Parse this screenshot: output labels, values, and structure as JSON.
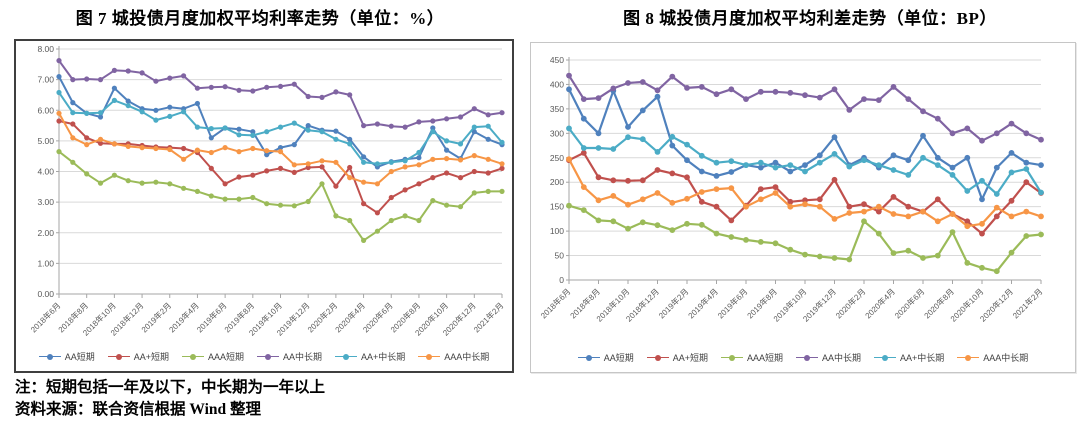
{
  "figures": [
    {
      "id": "figure-7",
      "title": "图 7  城投债月度加权平均利率走势（单位：%）"
    },
    {
      "id": "figure-8",
      "title": "图 8  城投债月度加权平均利差走势（单位：BP）"
    }
  ],
  "notes": {
    "line1": "注：短期包括一年及以下，中长期为一年以上",
    "line2": "资料来源：联合资信根据 Wind 整理"
  },
  "chart_data": [
    {
      "type": "line",
      "title": "城投债月度加权平均利率走势",
      "unit": "%",
      "x": [
        "2018年6月",
        "2018年7月",
        "2018年8月",
        "2018年9月",
        "2018年10月",
        "2018年11月",
        "2018年12月",
        "2019年1月",
        "2019年2月",
        "2019年3月",
        "2019年4月",
        "2019年5月",
        "2019年6月",
        "2019年7月",
        "2019年8月",
        "2019年9月",
        "2019年10月",
        "2019年11月",
        "2019年12月",
        "2020年1月",
        "2020年2月",
        "2020年3月",
        "2020年4月",
        "2020年5月",
        "2020年6月",
        "2020年7月",
        "2020年8月",
        "2020年9月",
        "2020年10月",
        "2020年11月",
        "2020年12月",
        "2021年1月",
        "2021年2月"
      ],
      "xtick_every": 2,
      "ylim": [
        0,
        8
      ],
      "yticks": [
        "0.00",
        "1.00",
        "2.00",
        "3.00",
        "4.00",
        "5.00",
        "6.00",
        "7.00",
        "8.00"
      ],
      "grid": true,
      "legend_position": "bottom",
      "series": [
        {
          "name": "AA短期",
          "color": "#4F81BD",
          "values": [
            7.1,
            6.25,
            5.9,
            5.78,
            6.72,
            6.3,
            6.05,
            6.0,
            6.1,
            6.05,
            6.22,
            5.1,
            5.42,
            5.38,
            5.3,
            4.55,
            4.78,
            4.88,
            5.5,
            5.35,
            5.32,
            5.05,
            4.48,
            4.15,
            4.32,
            4.4,
            4.45,
            5.42,
            4.7,
            4.42,
            5.3,
            5.05,
            4.88
          ]
        },
        {
          "name": "AA+短期",
          "color": "#C0504D",
          "values": [
            5.65,
            5.55,
            5.1,
            4.92,
            4.9,
            4.9,
            4.85,
            4.8,
            4.78,
            4.75,
            4.62,
            4.1,
            3.6,
            3.82,
            3.88,
            4.02,
            4.1,
            3.97,
            4.13,
            4.15,
            3.52,
            4.13,
            2.95,
            2.65,
            3.15,
            3.4,
            3.6,
            3.8,
            3.95,
            3.8,
            4.0,
            3.95,
            4.1
          ]
        },
        {
          "name": "AAA短期",
          "color": "#9BBB59",
          "values": [
            4.65,
            4.3,
            3.92,
            3.62,
            3.88,
            3.7,
            3.62,
            3.65,
            3.6,
            3.45,
            3.35,
            3.2,
            3.1,
            3.1,
            3.15,
            2.95,
            2.9,
            2.88,
            3.02,
            3.6,
            2.55,
            2.4,
            1.75,
            2.05,
            2.4,
            2.55,
            2.4,
            3.05,
            2.9,
            2.85,
            3.3,
            3.35,
            3.35
          ]
        },
        {
          "name": "AA中长期",
          "color": "#8064A2",
          "values": [
            7.62,
            7.0,
            7.02,
            7.0,
            7.3,
            7.28,
            7.22,
            6.95,
            7.05,
            7.12,
            6.72,
            6.75,
            6.77,
            6.65,
            6.63,
            6.75,
            6.78,
            6.85,
            6.45,
            6.42,
            6.6,
            6.5,
            5.5,
            5.55,
            5.48,
            5.45,
            5.62,
            5.65,
            5.72,
            5.78,
            6.05,
            5.85,
            5.92
          ]
        },
        {
          "name": "AA+中长期",
          "color": "#4BACC6",
          "values": [
            6.58,
            5.92,
            5.9,
            5.92,
            6.32,
            6.15,
            5.95,
            5.68,
            5.8,
            5.95,
            5.45,
            5.4,
            5.42,
            5.2,
            5.18,
            5.3,
            5.45,
            5.58,
            5.35,
            5.3,
            5.05,
            4.9,
            4.3,
            4.25,
            4.3,
            4.35,
            4.62,
            5.3,
            5.0,
            4.9,
            5.45,
            5.48,
            4.95
          ]
        },
        {
          "name": "AAA中长期",
          "color": "#F79646",
          "values": [
            5.9,
            5.1,
            4.88,
            5.05,
            4.9,
            4.82,
            4.78,
            4.75,
            4.72,
            4.4,
            4.7,
            4.62,
            4.78,
            4.65,
            4.75,
            4.68,
            4.65,
            4.22,
            4.25,
            4.35,
            4.3,
            3.8,
            3.65,
            3.6,
            4.0,
            4.15,
            4.22,
            4.4,
            4.42,
            4.38,
            4.52,
            4.4,
            4.25
          ]
        }
      ]
    },
    {
      "type": "line",
      "title": "城投债月度加权平均利差走势",
      "unit": "BP",
      "x": [
        "2018年6月",
        "2018年7月",
        "2018年8月",
        "2018年9月",
        "2018年10月",
        "2018年11月",
        "2018年12月",
        "2019年1月",
        "2019年2月",
        "2019年3月",
        "2019年4月",
        "2019年5月",
        "2019年6月",
        "2019年7月",
        "2019年8月",
        "2019年9月",
        "2019年10月",
        "2019年11月",
        "2019年12月",
        "2020年1月",
        "2020年2月",
        "2020年3月",
        "2020年4月",
        "2020年5月",
        "2020年6月",
        "2020年7月",
        "2020年8月",
        "2020年9月",
        "2020年10月",
        "2020年11月",
        "2020年12月",
        "2021年1月",
        "2021年2月"
      ],
      "xtick_every": 2,
      "ylim": [
        0,
        450
      ],
      "yticks": [
        "0",
        "50",
        "100",
        "150",
        "200",
        "250",
        "300",
        "350",
        "400",
        "450"
      ],
      "grid": true,
      "legend_position": "bottom",
      "series": [
        {
          "name": "AA短期",
          "color": "#4F81BD",
          "values": [
            390,
            330,
            300,
            387,
            313,
            347,
            375,
            275,
            245,
            222,
            213,
            221,
            235,
            230,
            240,
            222,
            235,
            255,
            292,
            235,
            250,
            230,
            255,
            245,
            295,
            250,
            230,
            250,
            165,
            230,
            260,
            240,
            235
          ]
        },
        {
          "name": "AA+短期",
          "color": "#C0504D",
          "values": [
            245,
            260,
            210,
            204,
            203,
            204,
            225,
            218,
            210,
            160,
            150,
            122,
            152,
            186,
            190,
            160,
            163,
            165,
            205,
            150,
            155,
            140,
            170,
            150,
            140,
            165,
            135,
            120,
            95,
            130,
            162,
            200,
            178
          ]
        },
        {
          "name": "AAA短期",
          "color": "#9BBB59",
          "values": [
            152,
            143,
            122,
            120,
            105,
            118,
            112,
            102,
            115,
            113,
            95,
            88,
            82,
            78,
            75,
            62,
            52,
            48,
            45,
            42,
            120,
            95,
            55,
            60,
            45,
            50,
            98,
            35,
            25,
            18,
            56,
            90,
            93
          ]
        },
        {
          "name": "AA中长期",
          "color": "#8064A2",
          "values": [
            418,
            370,
            372,
            392,
            403,
            405,
            388,
            416,
            393,
            395,
            380,
            390,
            370,
            385,
            385,
            383,
            378,
            373,
            390,
            348,
            370,
            368,
            395,
            370,
            345,
            330,
            300,
            310,
            285,
            300,
            320,
            300,
            287
          ]
        },
        {
          "name": "AA+中长期",
          "color": "#4BACC6",
          "values": [
            310,
            270,
            270,
            268,
            292,
            288,
            262,
            293,
            277,
            254,
            240,
            243,
            235,
            240,
            230,
            235,
            222,
            240,
            258,
            232,
            245,
            235,
            225,
            215,
            250,
            235,
            215,
            182,
            203,
            176,
            220,
            227,
            179
          ]
        },
        {
          "name": "AAA中长期",
          "color": "#F79646",
          "values": [
            247,
            190,
            163,
            172,
            154,
            165,
            178,
            158,
            166,
            180,
            186,
            188,
            150,
            165,
            178,
            150,
            155,
            150,
            125,
            137,
            140,
            150,
            135,
            130,
            140,
            120,
            135,
            110,
            115,
            148,
            130,
            140,
            130
          ]
        }
      ]
    }
  ]
}
